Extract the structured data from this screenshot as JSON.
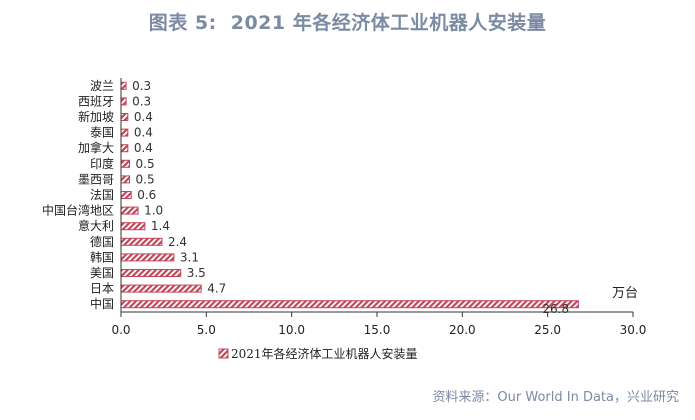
{
  "header": {
    "figure_label": "图表 5:",
    "title": "2021 年各经济体工业机器人安装量"
  },
  "chart_data": {
    "type": "bar",
    "orientation": "horizontal",
    "categories": [
      "波兰",
      "西班牙",
      "新加坡",
      "泰国",
      "加拿大",
      "印度",
      "墨西哥",
      "法国",
      "中国台湾地区",
      "意大利",
      "德国",
      "韩国",
      "美国",
      "日本",
      "中国"
    ],
    "series": [
      {
        "name": "2021年各经济体工业机器人安装量",
        "values": [
          0.3,
          0.3,
          0.4,
          0.4,
          0.4,
          0.5,
          0.5,
          0.6,
          1.0,
          1.4,
          2.4,
          3.1,
          3.5,
          4.7,
          26.8
        ],
        "data_labels": [
          "0.3",
          "0.3",
          "0.4",
          "0.4",
          "0.4",
          "0.5",
          "0.5",
          "0.6",
          "1.0",
          "1.4",
          "2.4",
          "3.1",
          "3.5",
          "4.7",
          "26.8"
        ]
      }
    ],
    "xlim": [
      0,
      30
    ],
    "xticks": [
      0,
      5,
      10,
      15,
      20,
      25,
      30
    ],
    "xtick_labels": [
      "0.0",
      "5.0",
      "10.0",
      "15.0",
      "20.0",
      "25.0",
      "30.0"
    ],
    "unit_annotation": "万台",
    "grid": false,
    "legend_position": "bottom",
    "bar_color": "#c0485a",
    "hatch": "diagonal"
  },
  "footer": {
    "source": "资料来源：Our World In Data，兴业研究"
  }
}
